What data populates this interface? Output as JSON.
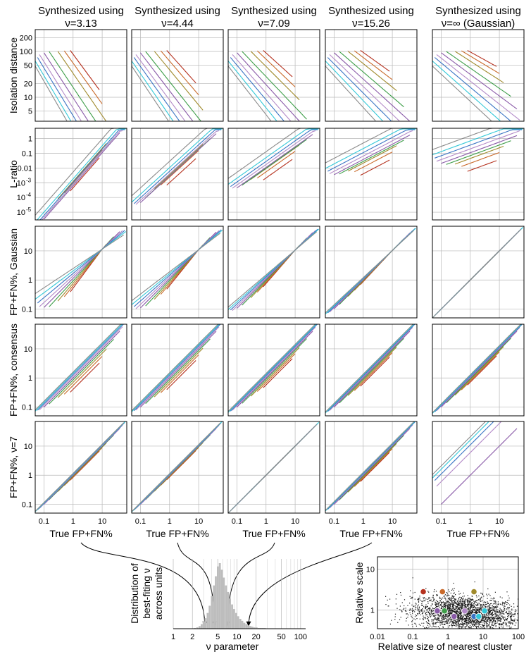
{
  "colors": {
    "red": "#b5321f",
    "orange": "#c96a2a",
    "olive": "#a08a2c",
    "green": "#3e9e49",
    "purple": "#8a5aa8",
    "lilac": "#b38ac8",
    "blue": "#3a74c4",
    "cyan": "#33c8d8",
    "grey": "#8a8a8a"
  },
  "chart_data": [
    {
      "type": "line",
      "grid": true,
      "columns": [
        {
          "title": "Synthesized using",
          "nu_label": "ν=3.13",
          "nu": 3.13
        },
        {
          "title": "Synthesized using",
          "nu_label": "ν=4.44",
          "nu": 4.44
        },
        {
          "title": "Synthesized using",
          "nu_label": "ν=7.09",
          "nu": 7.09
        },
        {
          "title": "Synthesized using",
          "nu_label": "ν=15.26",
          "nu": 15.26
        },
        {
          "title": "Synthesized using",
          "nu_label": "ν=∞ (Gaussian)",
          "nu": 1000
        }
      ],
      "rows": [
        {
          "ylabel": "Isolation distance",
          "yscale": "log",
          "ylim": [
            3,
            300
          ],
          "ticks": [
            {
              "v": 5,
              "t": "5"
            },
            {
              "v": 10,
              "t": "10"
            },
            {
              "v": 20,
              "t": "20"
            },
            {
              "v": 50,
              "t": "50"
            },
            {
              "v": 100,
              "t": "100"
            },
            {
              "v": 200,
              "t": "200"
            }
          ]
        },
        {
          "ylabel": "L-ratio",
          "yscale": "log",
          "ylim": [
            3e-06,
            5
          ],
          "ticks": [
            {
              "v": 1e-05,
              "t": "10"
            },
            {
              "v": 0.0001,
              "t": "10"
            },
            {
              "v": 0.001,
              "t": "10"
            },
            {
              "v": 0.01,
              "t": "0.01"
            },
            {
              "v": 0.1,
              "t": "0.1"
            },
            {
              "v": 1,
              "t": "1"
            }
          ],
          "tick_exponents": [
            "-5",
            "-4",
            "-3",
            "",
            "",
            ""
          ]
        },
        {
          "ylabel": "FP+FN%, Gaussian",
          "yscale": "log",
          "ylim": [
            0.05,
            70
          ],
          "ticks": [
            {
              "v": 0.1,
              "t": "0.1"
            },
            {
              "v": 1,
              "t": "1"
            },
            {
              "v": 10,
              "t": "10"
            }
          ]
        },
        {
          "ylabel": "FP+FN%, consensus",
          "yscale": "log",
          "ylim": [
            0.05,
            70
          ],
          "ticks": [
            {
              "v": 0.1,
              "t": "0.1"
            },
            {
              "v": 1,
              "t": "1"
            },
            {
              "v": 10,
              "t": "10"
            }
          ]
        },
        {
          "ylabel": "FP+FN%, ν=7",
          "yscale": "log",
          "ylim": [
            0.05,
            70
          ],
          "ticks": [
            {
              "v": 0.1,
              "t": "0.1"
            },
            {
              "v": 1,
              "t": "1"
            },
            {
              "v": 10,
              "t": "10"
            }
          ]
        }
      ],
      "xscale": "log",
      "xlim": [
        0.05,
        70
      ],
      "xticks": [
        {
          "v": 0.1,
          "t": "0.1"
        },
        {
          "v": 1,
          "t": "1"
        },
        {
          "v": 10,
          "t": "10"
        }
      ],
      "xlabel": "True FP+FN%",
      "series_colors": [
        "red",
        "orange",
        "olive",
        "green",
        "purple",
        "lilac",
        "blue",
        "cyan",
        "grey"
      ],
      "series": [
        {
          "color": "red",
          "start": 0.8,
          "end": 8
        },
        {
          "color": "orange",
          "start": 0.5,
          "end": 10
        },
        {
          "color": "olive",
          "start": 0.3,
          "end": 14
        },
        {
          "color": "green",
          "start": 0.15,
          "end": 25
        },
        {
          "color": "purple",
          "start": 0.1,
          "end": 40
        },
        {
          "color": "lilac",
          "start": 0.07,
          "end": 50
        },
        {
          "color": "blue",
          "start": 0.06,
          "end": 60
        },
        {
          "color": "cyan",
          "start": 0.05,
          "end": 65
        },
        {
          "color": "grey",
          "start": 0.05,
          "end": 55
        }
      ]
    },
    {
      "type": "bar",
      "ylabel": "Distribution of best-fiting ν across units",
      "xlabel": "ν parameter",
      "xscale": "log",
      "xlim": [
        1,
        120
      ],
      "xticks": [
        {
          "v": 1,
          "t": "1"
        },
        {
          "v": 2,
          "t": "2"
        },
        {
          "v": 5,
          "t": "5"
        },
        {
          "v": 10,
          "t": "10"
        },
        {
          "v": 20,
          "t": "20"
        },
        {
          "v": 50,
          "t": "50"
        },
        {
          "v": 100,
          "t": "100"
        }
      ],
      "bins_x": [
        2.1,
        2.3,
        2.5,
        2.7,
        2.9,
        3.1,
        3.35,
        3.6,
        3.9,
        4.2,
        4.5,
        4.85,
        5.2,
        5.6,
        6.0,
        6.5,
        7.0,
        7.5,
        8.1,
        8.7,
        9.4,
        10.1,
        10.9,
        11.7,
        12.6,
        13.6,
        14.6,
        15.7,
        16.9,
        18.2,
        19.6,
        21.1,
        22.7,
        24.5,
        26.4
      ],
      "bins_count": [
        1,
        2,
        4,
        7,
        11,
        16,
        24,
        35,
        50,
        66,
        80,
        95,
        100,
        90,
        78,
        66,
        56,
        46,
        37,
        30,
        24,
        19,
        15,
        12,
        9,
        7,
        5,
        4,
        3,
        2,
        2,
        1,
        1,
        1,
        1
      ],
      "ymax": 100
    },
    {
      "type": "scatter",
      "xlabel": "Relative size of nearest cluster",
      "ylabel": "Relative scale",
      "xscale": "log",
      "yscale": "log",
      "xlim": [
        0.01,
        100
      ],
      "ylim": [
        0.35,
        20
      ],
      "xticks": [
        {
          "v": 0.01,
          "t": "0.01"
        },
        {
          "v": 0.1,
          "t": "0.1"
        },
        {
          "v": 1,
          "t": "1"
        },
        {
          "v": 10,
          "t": "10"
        },
        {
          "v": 100,
          "t": "100"
        }
      ],
      "yticks": [
        {
          "v": 1,
          "t": "1"
        },
        {
          "v": 10,
          "t": "10"
        }
      ],
      "grid": true,
      "cloud": {
        "count": 2600,
        "center_x": 3,
        "center_y": 0.9
      },
      "highlighted": [
        {
          "x": 0.2,
          "y": 2.8,
          "color": "red"
        },
        {
          "x": 0.7,
          "y": 2.8,
          "color": "orange"
        },
        {
          "x": 5.5,
          "y": 2.8,
          "color": "olive"
        },
        {
          "x": 0.5,
          "y": 0.95,
          "color": "purple"
        },
        {
          "x": 0.8,
          "y": 0.95,
          "color": "green"
        },
        {
          "x": 1.5,
          "y": 0.7,
          "color": "purple"
        },
        {
          "x": 3.0,
          "y": 0.95,
          "color": "lilac"
        },
        {
          "x": 5.5,
          "y": 0.7,
          "color": "blue"
        },
        {
          "x": 11,
          "y": 0.95,
          "color": "cyan"
        },
        {
          "x": 7.5,
          "y": 0.7,
          "color": "cyan"
        }
      ]
    }
  ]
}
